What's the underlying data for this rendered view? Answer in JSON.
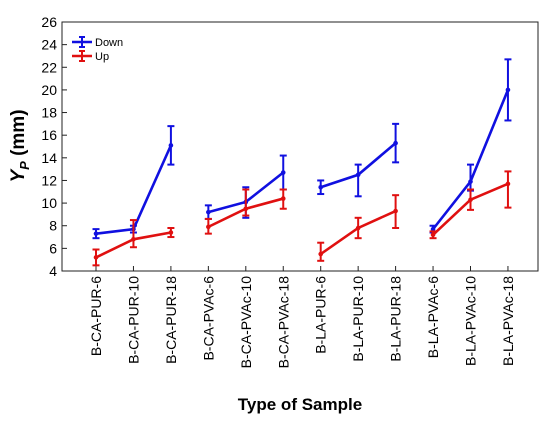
{
  "chart_data": {
    "type": "line",
    "xlabel": "Type of Sample",
    "ylabel_main": "Y",
    "ylabel_sub": "P",
    "ylabel_unit": " (mm)",
    "ylim": [
      4,
      26
    ],
    "yticks": [
      4,
      6,
      8,
      10,
      12,
      14,
      16,
      18,
      20,
      22,
      24,
      26
    ],
    "grid": false,
    "legend_position": "top-left",
    "categories": [
      "B-CA-PUR-6",
      "B-CA-PUR-10",
      "B-CA-PUR-18",
      "B-CA-PVAc-6",
      "B-CA-PVAc-10",
      "B-CA-PVAc-18",
      "B-LA-PUR-6",
      "B-LA-PUR-10",
      "B-LA-PUR-18",
      "B-LA-PVAc-6",
      "B-LA-PVAc-10",
      "B-LA-PVAc-18"
    ],
    "groups": [
      [
        0,
        1,
        2
      ],
      [
        3,
        4,
        5
      ],
      [
        6,
        7,
        8
      ],
      [
        9,
        10,
        11
      ]
    ],
    "series": [
      {
        "name": "Down",
        "color": "#1010e0",
        "values": [
          7.3,
          7.7,
          15.1,
          9.2,
          10.1,
          12.7,
          11.4,
          12.5,
          15.3,
          7.7,
          11.9,
          20.0
        ],
        "err_low": [
          6.9,
          7.4,
          13.4,
          8.6,
          8.7,
          11.2,
          10.8,
          10.6,
          13.6,
          7.4,
          11.1,
          17.3
        ],
        "err_high": [
          7.7,
          8.0,
          16.8,
          9.8,
          11.4,
          14.2,
          12.0,
          13.4,
          17.0,
          8.0,
          13.4,
          22.7
        ]
      },
      {
        "name": "Up",
        "color": "#e01010",
        "values": [
          5.2,
          6.8,
          7.4,
          7.9,
          9.5,
          10.4,
          5.5,
          7.8,
          9.3,
          7.2,
          10.3,
          11.7
        ],
        "err_low": [
          4.5,
          6.1,
          7.0,
          7.3,
          8.9,
          9.5,
          4.9,
          6.9,
          7.8,
          6.9,
          9.4,
          9.6
        ],
        "err_high": [
          5.9,
          8.5,
          7.8,
          8.6,
          11.2,
          11.2,
          6.5,
          8.7,
          10.7,
          7.5,
          11.2,
          12.8
        ]
      }
    ]
  }
}
